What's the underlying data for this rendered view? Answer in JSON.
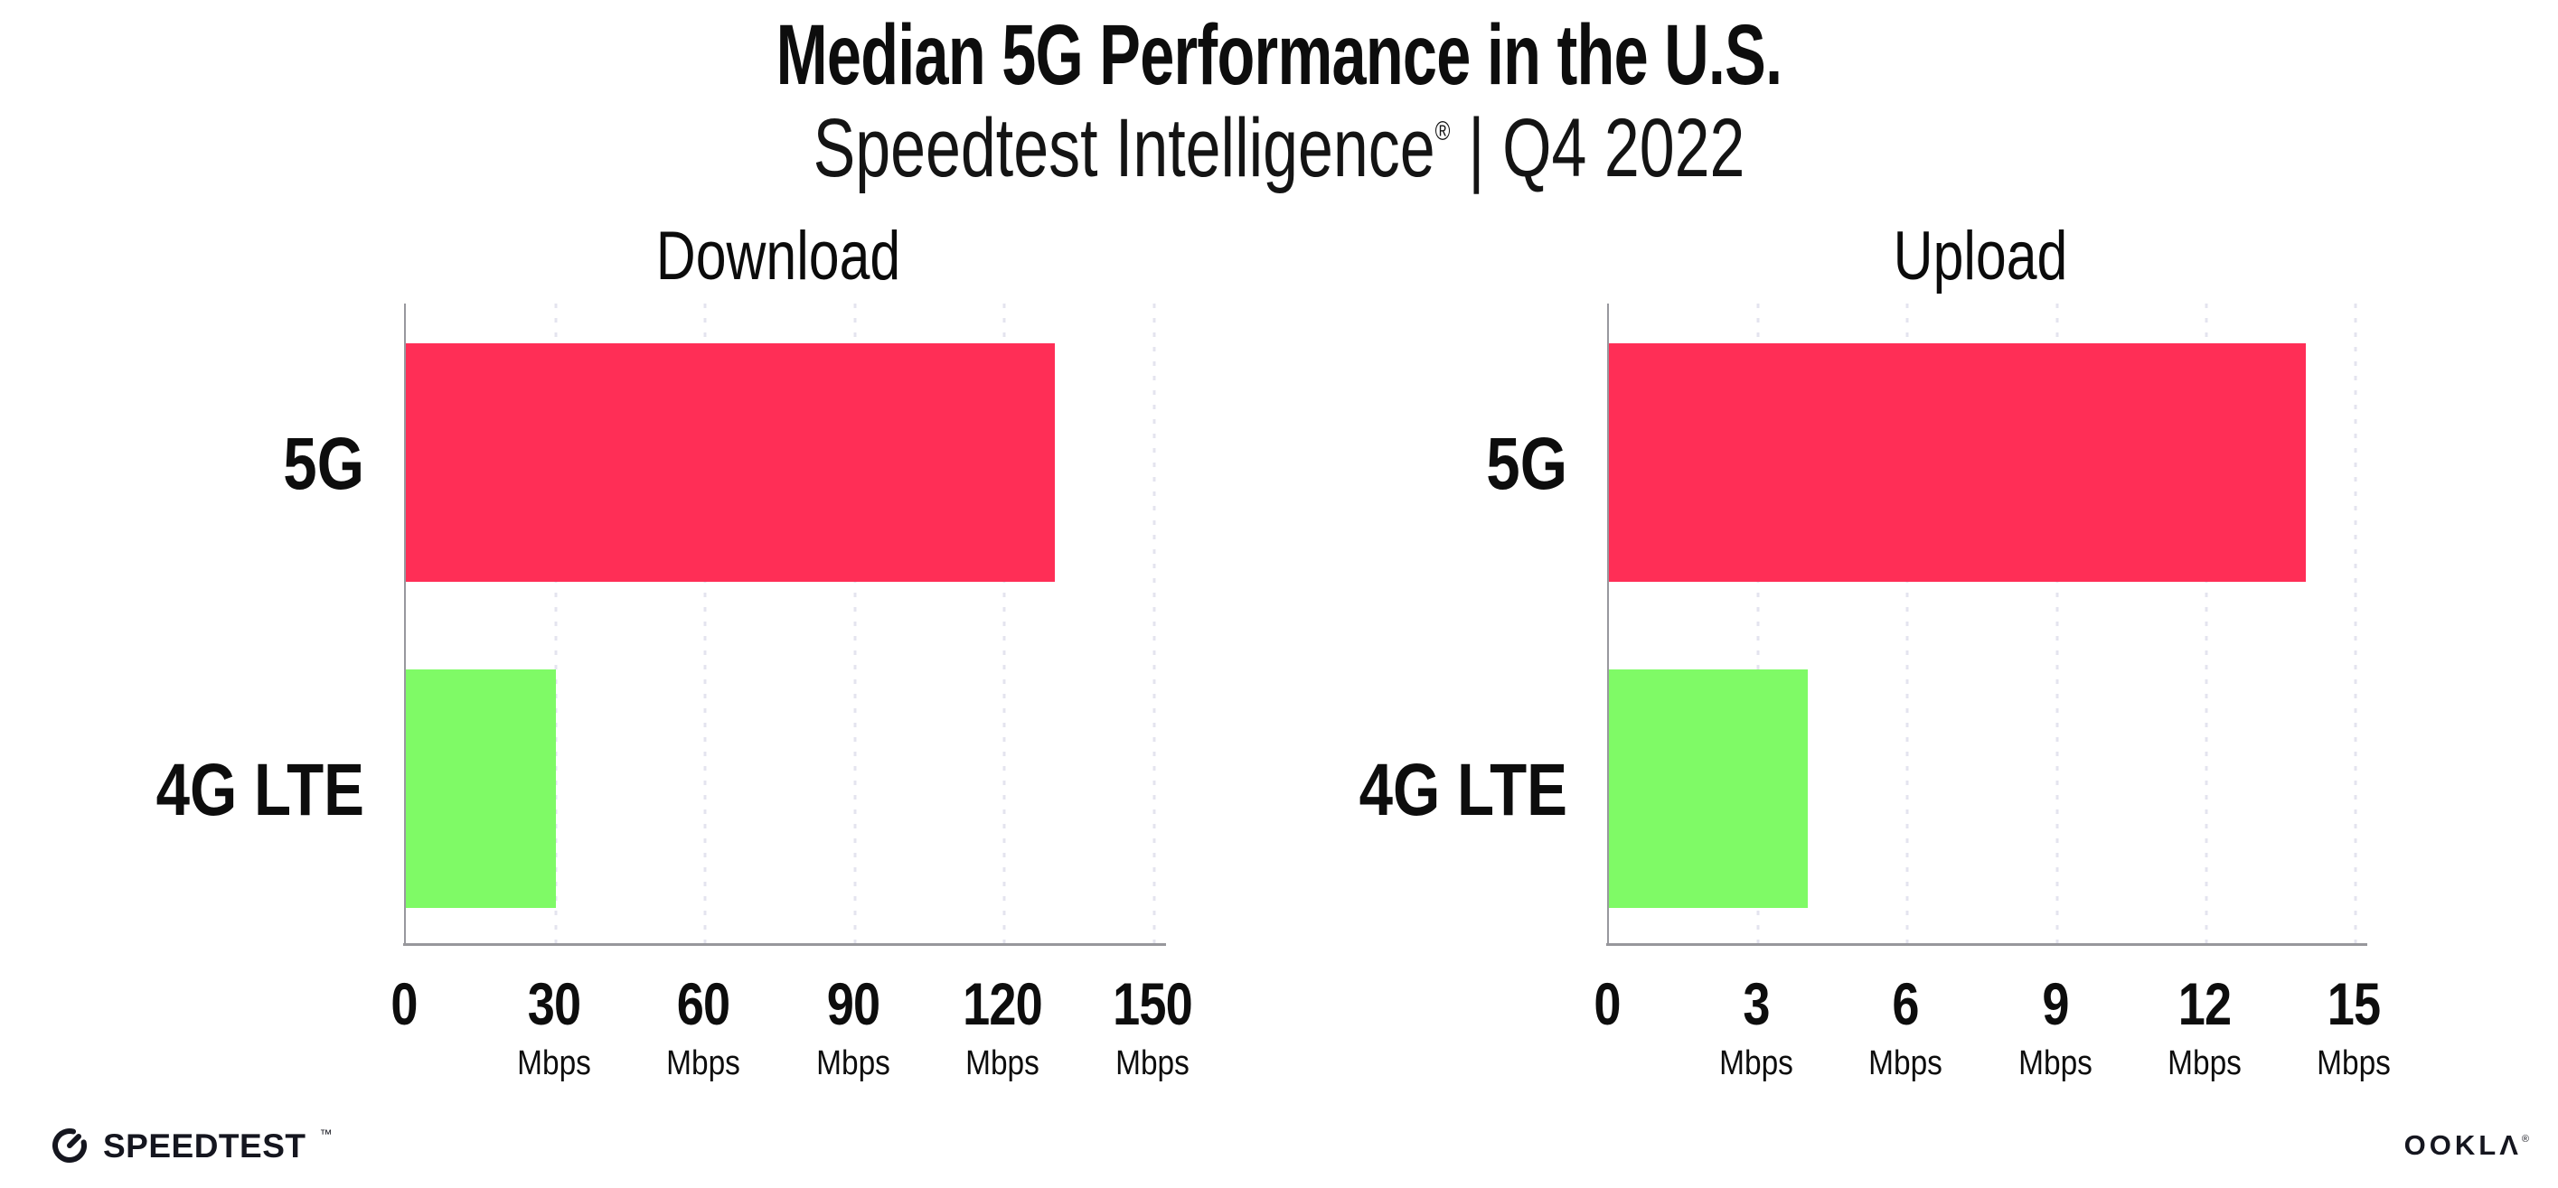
{
  "header": {
    "title": "Median 5G Performance in the U.S.",
    "subtitle_brand": "Speedtest Intelligence",
    "subtitle_reg": "®",
    "subtitle_sep": "|",
    "subtitle_period": "Q4 2022"
  },
  "footer": {
    "speedtest_label": "SPEEDTEST",
    "speedtest_tm": "™",
    "ookla_label": "OOKLΛ",
    "ookla_reg": "®"
  },
  "colors": {
    "bar_5g": "#FF2E56",
    "bar_4g": "#7FFA66",
    "axis": "#97979c",
    "grid": "#e4e4ef",
    "text": "#0d0d0d"
  },
  "chart_data": [
    {
      "type": "bar",
      "orientation": "horizontal",
      "title": "Download",
      "categories": [
        "5G",
        "4G LTE"
      ],
      "values": [
        130,
        30
      ],
      "unit": "Mbps",
      "xlim": [
        0,
        150
      ],
      "xticks": [
        0,
        30,
        60,
        90,
        120,
        150
      ],
      "grid": true,
      "legend": "none",
      "bar_colors": [
        "#FF2E56",
        "#7FFA66"
      ]
    },
    {
      "type": "bar",
      "orientation": "horizontal",
      "title": "Upload",
      "categories": [
        "5G",
        "4G LTE"
      ],
      "values": [
        14,
        4
      ],
      "unit": "Mbps",
      "xlim": [
        0,
        15
      ],
      "xticks": [
        0,
        3,
        6,
        9,
        12,
        15
      ],
      "grid": true,
      "legend": "none",
      "bar_colors": [
        "#FF2E56",
        "#7FFA66"
      ]
    }
  ]
}
